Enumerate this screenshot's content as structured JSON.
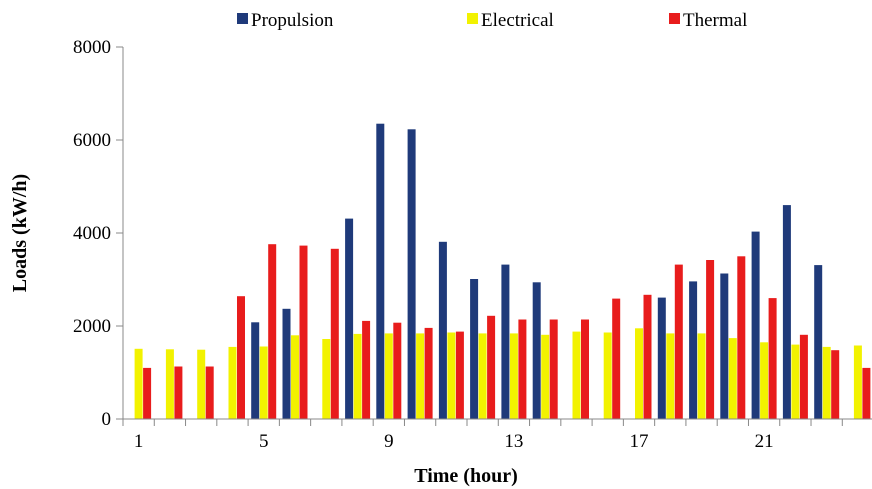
{
  "chart_data": {
    "type": "bar",
    "xlabel": "Time (hour)",
    "ylabel": "Loads (kW/h)",
    "ylim": [
      0,
      8000
    ],
    "yticks": [
      0,
      2000,
      4000,
      6000,
      8000
    ],
    "x_tick_labels": [
      "1",
      "5",
      "9",
      "13",
      "17",
      "21"
    ],
    "categories": [
      1,
      2,
      3,
      4,
      5,
      6,
      7,
      8,
      9,
      10,
      11,
      12,
      13,
      14,
      15,
      16,
      17,
      18,
      19,
      20,
      21,
      22,
      23,
      24
    ],
    "grid": false,
    "legend_position": "top",
    "series": [
      {
        "name": "Propulsion",
        "color": "#1f3a7a",
        "values": [
          0,
          0,
          0,
          0,
          2080,
          2370,
          0,
          4310,
          6350,
          6230,
          3810,
          3010,
          3320,
          2940,
          0,
          0,
          0,
          2610,
          2960,
          3130,
          4030,
          4600,
          3310,
          0
        ]
      },
      {
        "name": "Electrical",
        "color": "#f2f200",
        "values": [
          1510,
          1500,
          1490,
          1550,
          1560,
          1800,
          1720,
          1830,
          1840,
          1840,
          1860,
          1840,
          1840,
          1810,
          1880,
          1860,
          1950,
          1840,
          1840,
          1740,
          1650,
          1600,
          1550,
          1580
        ]
      },
      {
        "name": "Thermal",
        "color": "#e81c1c",
        "values": [
          1100,
          1130,
          1130,
          2640,
          3760,
          3730,
          3660,
          2110,
          2070,
          1960,
          1880,
          2220,
          2140,
          2140,
          2140,
          2590,
          2670,
          3320,
          3420,
          3500,
          2600,
          1810,
          1480,
          1100
        ]
      }
    ]
  }
}
